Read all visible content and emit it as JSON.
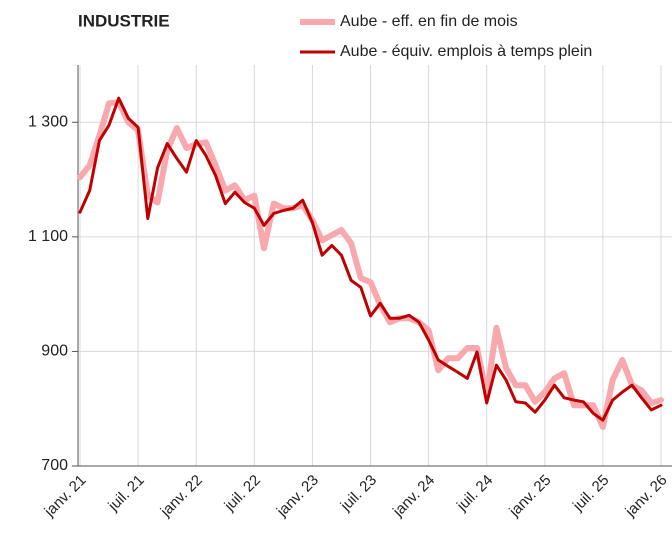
{
  "chart_data": {
    "type": "line",
    "title": "INDUSTRIE",
    "categories": [
      "janv. 21",
      null,
      null,
      null,
      null,
      null,
      "juil. 21",
      null,
      null,
      null,
      null,
      null,
      "janv. 22",
      null,
      null,
      null,
      null,
      null,
      "juil. 22",
      null,
      null,
      null,
      null,
      null,
      "janv. 23",
      null,
      null,
      null,
      null,
      null,
      "juil. 23",
      null,
      null,
      null,
      null,
      null,
      "janv. 24",
      null,
      null,
      null,
      null,
      null,
      "juil. 24",
      null,
      null,
      null,
      null,
      null,
      "janv. 25",
      null,
      null,
      null,
      null,
      null,
      "juil. 25",
      null,
      null,
      null,
      null,
      null,
      "janv. 26"
    ],
    "series": [
      {
        "name": "Aube - eff. en fin de mois",
        "color": "#f9a8ae",
        "values": [
          1204,
          1225,
          1277,
          1333,
          1335,
          1300,
          1286,
          1172,
          1160,
          1251,
          1290,
          1255,
          1262,
          1265,
          1225,
          1181,
          1190,
          1164,
          1172,
          1080,
          1158,
          1150,
          1150,
          1155,
          1129,
          1094,
          1103,
          1112,
          1089,
          1028,
          1021,
          981,
          951,
          958,
          958,
          951,
          937,
          867,
          888,
          888,
          906,
          906,
          824,
          941,
          871,
          841,
          841,
          812,
          829,
          853,
          862,
          806,
          806,
          806,
          768,
          850,
          885,
          841,
          832,
          810,
          815
        ]
      },
      {
        "name": "Aube - équiv. emplois à temps plein",
        "color": "#c00000",
        "values": [
          1143,
          1181,
          1268,
          1295,
          1342,
          1307,
          1291,
          1132,
          1220,
          1263,
          1237,
          1213,
          1268,
          1242,
          1207,
          1158,
          1178,
          1160,
          1150,
          1120,
          1141,
          1146,
          1150,
          1164,
          1125,
          1068,
          1085,
          1068,
          1024,
          1012,
          962,
          984,
          958,
          958,
          963,
          951,
          920,
          885,
          874,
          864,
          853,
          899,
          810,
          876,
          850,
          812,
          810,
          794,
          815,
          841,
          819,
          815,
          812,
          792,
          780,
          815,
          829,
          841,
          819,
          798,
          806
        ]
      }
    ],
    "ylim": [
      700,
      1400
    ],
    "yticks": [
      700,
      900,
      {
        "value": 1100,
        "label": "1 100"
      },
      {
        "value": 1300,
        "label": "1 300"
      }
    ],
    "grid": true
  }
}
